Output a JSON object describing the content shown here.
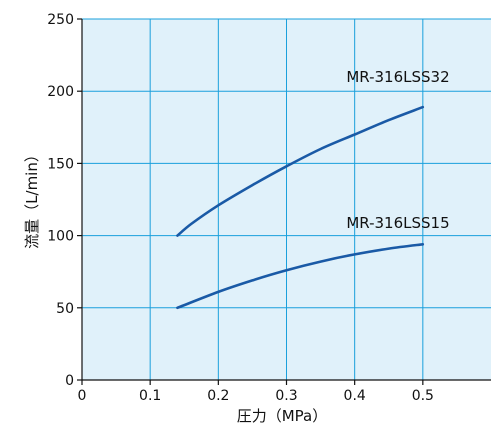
{
  "chart_data": {
    "type": "line",
    "title": "",
    "xlabel": "圧力（MPa）",
    "ylabel": "流量（L/min）",
    "xlim": [
      0,
      0.6
    ],
    "ylim": [
      0,
      250
    ],
    "x_ticks": [
      0,
      0.1,
      0.2,
      0.3,
      0.4,
      0.5
    ],
    "x_tick_labels": [
      "0",
      "0.1",
      "0.2",
      "0.3",
      "0.4",
      "0.5"
    ],
    "y_ticks": [
      0,
      50,
      100,
      150,
      200,
      250
    ],
    "y_tick_labels": [
      "0",
      "50",
      "100",
      "150",
      "200",
      "250"
    ],
    "grid": true,
    "legend": "none",
    "colors": {
      "plot_background": "#e0f1fa",
      "grid": "#1aa0dc",
      "series": "#1a5aa6",
      "axis": "#111111"
    },
    "series": [
      {
        "name": "MR-316LSS32",
        "x": [
          0.14,
          0.16,
          0.2,
          0.25,
          0.3,
          0.35,
          0.4,
          0.45,
          0.5
        ],
        "y": [
          100,
          108,
          121,
          135,
          148,
          160,
          170,
          180,
          189
        ]
      },
      {
        "name": "MR-316LSS15",
        "x": [
          0.14,
          0.2,
          0.25,
          0.3,
          0.35,
          0.4,
          0.45,
          0.5
        ],
        "y": [
          50,
          61,
          69,
          76,
          82,
          87,
          91,
          94
        ]
      }
    ]
  }
}
